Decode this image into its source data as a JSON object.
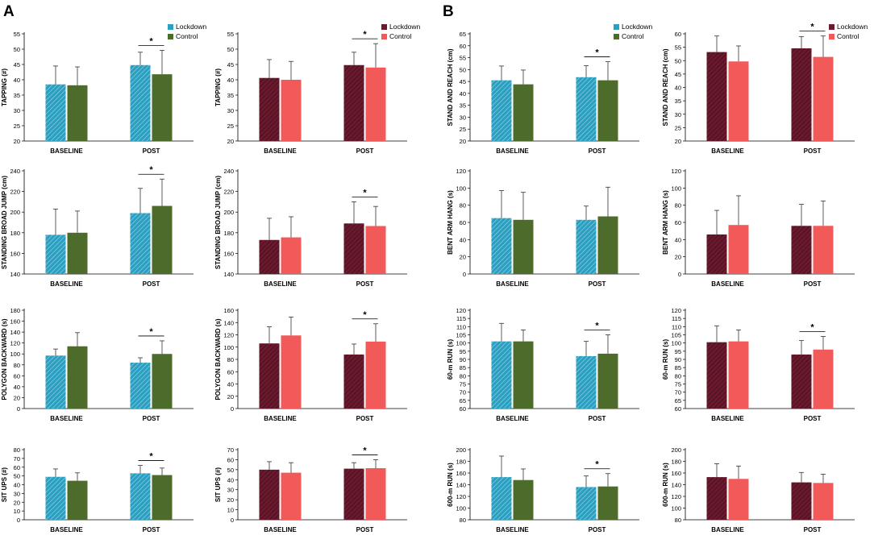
{
  "panels": {
    "a": "A",
    "b": "B"
  },
  "colors": {
    "lockdown_blue": "#2a9fc0",
    "control_green": "#4d6b2a",
    "lockdown_maroon": "#6b1a2e",
    "control_red": "#f25a5a"
  },
  "chart_data": [
    {
      "type": "bar",
      "title": "",
      "ylabel": "TAPPING  (#)",
      "categories": [
        "BASELINE",
        "POST"
      ],
      "ylim": [
        20,
        55
      ],
      "yticks": [
        20,
        25,
        30,
        35,
        40,
        45,
        50,
        55
      ],
      "legend": "top-right",
      "palette": "bg",
      "series": [
        {
          "name": "Lockdown",
          "values": [
            38.5,
            44.8
          ],
          "errors": [
            6,
            4.2
          ]
        },
        {
          "name": "Control",
          "values": [
            38.2,
            41.8
          ],
          "errors": [
            6,
            7.8
          ]
        }
      ],
      "significance": {
        "category": "POST",
        "label": "*"
      }
    },
    {
      "type": "bar",
      "title": "",
      "ylabel": "TAPPING  (#)",
      "categories": [
        "BASELINE",
        "POST"
      ],
      "ylim": [
        20,
        55
      ],
      "yticks": [
        20,
        25,
        30,
        35,
        40,
        45,
        50,
        55
      ],
      "legend": "top-right",
      "palette": "mr",
      "series": [
        {
          "name": "Lockdown",
          "values": [
            40.6,
            44.8
          ],
          "errors": [
            6,
            4.2
          ]
        },
        {
          "name": "Control",
          "values": [
            40,
            44
          ],
          "errors": [
            6,
            7.8
          ]
        }
      ],
      "significance": {
        "category": "POST",
        "label": "*"
      }
    },
    {
      "type": "bar",
      "title": "",
      "ylabel": "STAND AND REACH  (cm)",
      "categories": [
        "BASELINE",
        "POST"
      ],
      "ylim": [
        20,
        65
      ],
      "yticks": [
        20,
        25,
        30,
        35,
        40,
        45,
        50,
        55,
        60,
        65
      ],
      "legend": "top-right",
      "palette": "bg",
      "series": [
        {
          "name": "Lockdown",
          "values": [
            45.5,
            46.8
          ],
          "errors": [
            6,
            4.8
          ]
        },
        {
          "name": "Control",
          "values": [
            43.8,
            45.5
          ],
          "errors": [
            6,
            7.8
          ]
        }
      ],
      "significance": {
        "category": "POST",
        "label": "*"
      }
    },
    {
      "type": "bar",
      "title": "",
      "ylabel": "STAND AND REACH  (cm)",
      "categories": [
        "BASELINE",
        "POST"
      ],
      "ylim": [
        20,
        60
      ],
      "yticks": [
        20,
        25,
        30,
        35,
        40,
        45,
        50,
        55,
        60
      ],
      "legend": "top-right",
      "palette": "mr",
      "series": [
        {
          "name": "Lockdown",
          "values": [
            53.2,
            54.6
          ],
          "errors": [
            6,
            4.4
          ]
        },
        {
          "name": "Control",
          "values": [
            49.7,
            51.4
          ],
          "errors": [
            5.8,
            7.8
          ]
        }
      ],
      "significance": {
        "category": "POST",
        "label": "*"
      }
    },
    {
      "type": "bar",
      "title": "",
      "ylabel": "STANDING BROAD JUMP  (cm)",
      "categories": [
        "BASELINE",
        "POST"
      ],
      "ylim": [
        140,
        240
      ],
      "yticks": [
        140,
        160,
        180,
        200,
        220,
        240
      ],
      "legend": "none",
      "palette": "bg",
      "series": [
        {
          "name": "Lockdown",
          "values": [
            178,
            199
          ],
          "errors": [
            25,
            24
          ]
        },
        {
          "name": "Control",
          "values": [
            180,
            206
          ],
          "errors": [
            21,
            26
          ]
        }
      ],
      "significance": {
        "category": "POST",
        "label": "*"
      }
    },
    {
      "type": "bar",
      "title": "",
      "ylabel": "STANDING BROAD JUMP  (cm)",
      "categories": [
        "BASELINE",
        "POST"
      ],
      "ylim": [
        140,
        240
      ],
      "yticks": [
        140,
        160,
        180,
        200,
        220,
        240
      ],
      "legend": "none",
      "palette": "mr",
      "series": [
        {
          "name": "Lockdown",
          "values": [
            173,
            189
          ],
          "errors": [
            21,
            21
          ]
        },
        {
          "name": "Control",
          "values": [
            175.5,
            186.5
          ],
          "errors": [
            20,
            19
          ]
        }
      ],
      "significance": {
        "category": "POST",
        "label": "*"
      }
    },
    {
      "type": "bar",
      "title": "",
      "ylabel": "BENT ARM HANG  (s)",
      "categories": [
        "BASELINE",
        "POST"
      ],
      "ylim": [
        0,
        120
      ],
      "yticks": [
        0,
        20,
        40,
        60,
        80,
        100,
        120
      ],
      "legend": "none",
      "palette": "bg",
      "series": [
        {
          "name": "Lockdown",
          "values": [
            65,
            63
          ],
          "errors": [
            32,
            16
          ]
        },
        {
          "name": "Control",
          "values": [
            63,
            67
          ],
          "errors": [
            32,
            34
          ]
        }
      ],
      "significance": null
    },
    {
      "type": "bar",
      "title": "",
      "ylabel": "BENT ARM HANG  (s)",
      "categories": [
        "BASELINE",
        "POST"
      ],
      "ylim": [
        0,
        120
      ],
      "yticks": [
        0,
        20,
        40,
        60,
        80,
        100,
        120
      ],
      "legend": "none",
      "palette": "mr",
      "series": [
        {
          "name": "Lockdown",
          "values": [
            46,
            56
          ],
          "errors": [
            28,
            25
          ]
        },
        {
          "name": "Control",
          "values": [
            57,
            56
          ],
          "errors": [
            34,
            29
          ]
        }
      ],
      "significance": null
    },
    {
      "type": "bar",
      "title": "",
      "ylabel": "POLYGON BACKWARD  (s)",
      "categories": [
        "BASELINE",
        "POST"
      ],
      "ylim": [
        0,
        180
      ],
      "yticks": [
        0,
        20,
        40,
        60,
        80,
        100,
        120,
        140,
        160,
        180
      ],
      "legend": "none",
      "palette": "bg",
      "series": [
        {
          "name": "Lockdown",
          "values": [
            97,
            84
          ],
          "errors": [
            12,
            9
          ]
        },
        {
          "name": "Control",
          "values": [
            114,
            100
          ],
          "errors": [
            25,
            24
          ]
        }
      ],
      "significance": {
        "category": "POST",
        "label": "*"
      }
    },
    {
      "type": "bar",
      "title": "",
      "ylabel": "POLYGON BACKWARD  (s)",
      "categories": [
        "BASELINE",
        "POST"
      ],
      "ylim": [
        0,
        160
      ],
      "yticks": [
        0,
        20,
        40,
        60,
        80,
        100,
        120,
        140,
        160
      ],
      "legend": "none",
      "palette": "mr",
      "series": [
        {
          "name": "Lockdown",
          "values": [
            106,
            88
          ],
          "errors": [
            27,
            17
          ]
        },
        {
          "name": "Control",
          "values": [
            119,
            109
          ],
          "errors": [
            30,
            29
          ]
        }
      ],
      "significance": {
        "category": "POST",
        "label": "*"
      }
    },
    {
      "type": "bar",
      "title": "",
      "ylabel": "60-m RUN  (s)",
      "categories": [
        "BASELINE",
        "POST"
      ],
      "ylim": [
        60,
        120
      ],
      "yticks": [
        60,
        65,
        70,
        75,
        80,
        85,
        90,
        95,
        100,
        105,
        110,
        115,
        120
      ],
      "legend": "none",
      "palette": "bg",
      "series": [
        {
          "name": "Lockdown",
          "values": [
            101,
            92
          ],
          "errors": [
            11,
            9
          ]
        },
        {
          "name": "Control",
          "values": [
            101,
            93.5
          ],
          "errors": [
            7,
            11.5
          ]
        }
      ],
      "significance": {
        "category": "POST",
        "label": "*"
      }
    },
    {
      "type": "bar",
      "title": "",
      "ylabel": "60-m RUN  (s)",
      "categories": [
        "BASELINE",
        "POST"
      ],
      "ylim": [
        60,
        120
      ],
      "yticks": [
        60,
        65,
        70,
        75,
        80,
        85,
        90,
        95,
        100,
        105,
        110,
        115,
        120
      ],
      "legend": "none",
      "palette": "mr",
      "series": [
        {
          "name": "Lockdown",
          "values": [
            100.5,
            93
          ],
          "errors": [
            10,
            8.5
          ]
        },
        {
          "name": "Control",
          "values": [
            101,
            96
          ],
          "errors": [
            7,
            8
          ]
        }
      ],
      "significance": {
        "category": "POST",
        "label": "*"
      }
    },
    {
      "type": "bar",
      "title": "",
      "ylabel": "SIT UPS  (#)",
      "categories": [
        "BASELINE",
        "POST"
      ],
      "ylim": [
        0,
        80
      ],
      "yticks": [
        0,
        10,
        20,
        30,
        40,
        50,
        60,
        70,
        80
      ],
      "legend": "none",
      "palette": "bg",
      "series": [
        {
          "name": "Lockdown",
          "values": [
            49,
            53
          ],
          "errors": [
            9,
            9
          ]
        },
        {
          "name": "Control",
          "values": [
            44.5,
            51
          ],
          "errors": [
            9,
            8
          ]
        }
      ],
      "significance": {
        "category": "POST",
        "label": "*"
      }
    },
    {
      "type": "bar",
      "title": "",
      "ylabel": "SIT UPS  (#)",
      "categories": [
        "BASELINE",
        "POST"
      ],
      "ylim": [
        0,
        70
      ],
      "yticks": [
        0,
        10,
        20,
        30,
        40,
        50,
        60,
        70
      ],
      "legend": "none",
      "palette": "mr",
      "series": [
        {
          "name": "Lockdown",
          "values": [
            50,
            51
          ],
          "errors": [
            8,
            6
          ]
        },
        {
          "name": "Control",
          "values": [
            47,
            51.5
          ],
          "errors": [
            10,
            8.5
          ]
        }
      ],
      "significance": {
        "category": "POST",
        "label": "*"
      }
    },
    {
      "type": "bar",
      "title": "",
      "ylabel": "600-m RUN  (s)",
      "categories": [
        "BASELINE",
        "POST"
      ],
      "ylim": [
        80,
        200
      ],
      "yticks": [
        80,
        100,
        120,
        140,
        160,
        180,
        200
      ],
      "legend": "none",
      "palette": "bg",
      "series": [
        {
          "name": "Lockdown",
          "values": [
            153,
            136
          ],
          "errors": [
            36,
            19
          ]
        },
        {
          "name": "Control",
          "values": [
            148,
            137
          ],
          "errors": [
            19,
            22
          ]
        }
      ],
      "significance": {
        "category": "POST",
        "label": "*"
      }
    },
    {
      "type": "bar",
      "title": "",
      "ylabel": "600-m RUN  (s)",
      "categories": [
        "BASELINE",
        "POST"
      ],
      "ylim": [
        80,
        200
      ],
      "yticks": [
        80,
        100,
        120,
        140,
        160,
        180,
        200
      ],
      "legend": "none",
      "palette": "mr",
      "series": [
        {
          "name": "Lockdown",
          "values": [
            153,
            144
          ],
          "errors": [
            23,
            17
          ]
        },
        {
          "name": "Control",
          "values": [
            150,
            143
          ],
          "errors": [
            22,
            15
          ]
        }
      ],
      "significance": null
    }
  ]
}
